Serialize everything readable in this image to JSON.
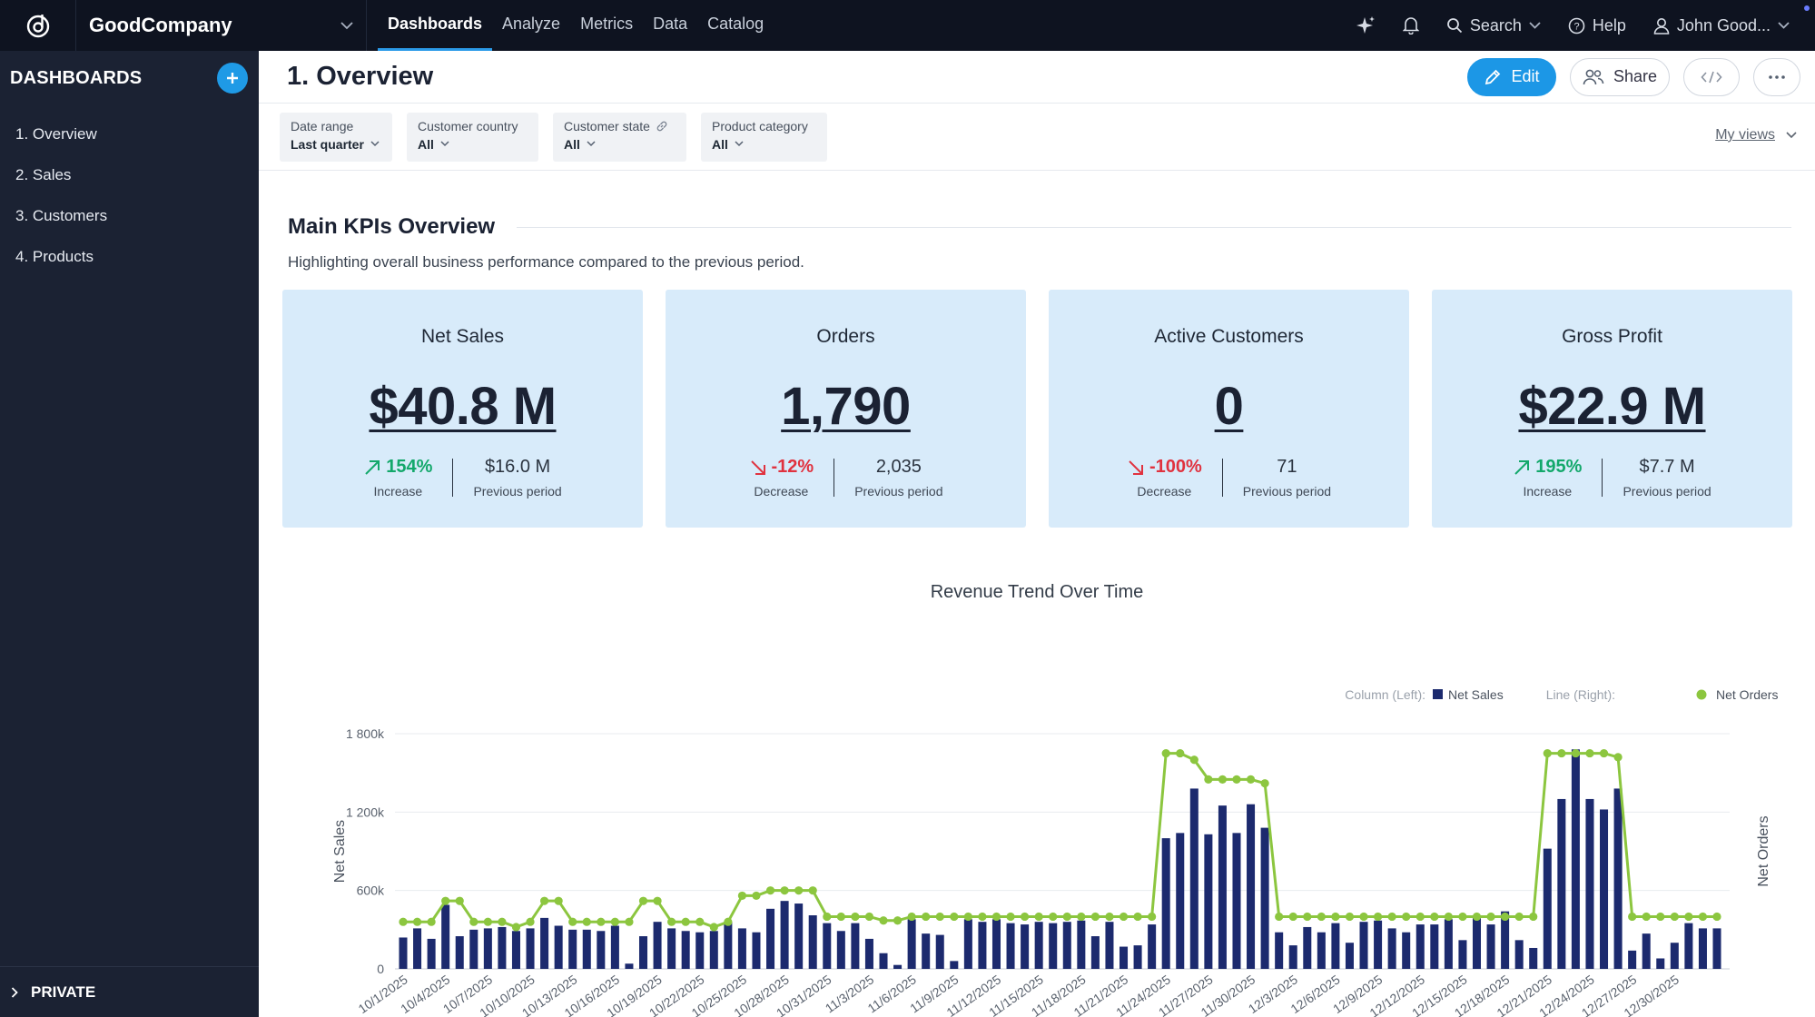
{
  "app": {
    "workspace": "GoodCompany",
    "nav": [
      "Dashboards",
      "Analyze",
      "Metrics",
      "Data",
      "Catalog"
    ],
    "active_nav": "Dashboards",
    "search_label": "Search",
    "help_label": "Help",
    "user_name": "John Good..."
  },
  "sidebar": {
    "title": "DASHBOARDS",
    "items": [
      {
        "label": "1. Overview"
      },
      {
        "label": "2. Sales"
      },
      {
        "label": "3. Customers"
      },
      {
        "label": "4. Products"
      }
    ],
    "footer_label": "PRIVATE"
  },
  "page": {
    "title": "1. Overview",
    "edit_label": "Edit",
    "share_label": "Share"
  },
  "filters": [
    {
      "label": "Date range",
      "value": "Last quarter"
    },
    {
      "label": "Customer country",
      "value": "All"
    },
    {
      "label": "Customer state",
      "value": "All"
    },
    {
      "label": "Product category",
      "value": "All"
    }
  ],
  "my_views_label": "My views",
  "section": {
    "title": "Main KPIs Overview",
    "description": "Highlighting overall business performance compared to the previous period."
  },
  "kpis": [
    {
      "title": "Net Sales",
      "value": "$40.8 M",
      "delta": "154%",
      "direction": "up",
      "delta_label": "Increase",
      "previous": "$16.0 M",
      "previous_label": "Previous period"
    },
    {
      "title": "Orders",
      "value": "1,790",
      "delta": "-12%",
      "direction": "down",
      "delta_label": "Decrease",
      "previous": "2,035",
      "previous_label": "Previous period"
    },
    {
      "title": "Active Customers",
      "value": "0",
      "delta": "-100%",
      "direction": "down",
      "delta_label": "Decrease",
      "previous": "71",
      "previous_label": "Previous period"
    },
    {
      "title": "Gross Profit",
      "value": "$22.9 M",
      "delta": "195%",
      "direction": "up",
      "delta_label": "Increase",
      "previous": "$7.7 M",
      "previous_label": "Previous period"
    }
  ],
  "colors": {
    "bar": "#1c2a6e",
    "line": "#8cc63f",
    "accent": "#1c97e6",
    "up": "#13a86b",
    "down": "#e0323f"
  },
  "chart_data": {
    "type": "bar",
    "title": "Revenue Trend Over Time",
    "ylabel": "Net Sales",
    "y2label": "Net Orders",
    "ylim": [
      0,
      1800000
    ],
    "yticks": [
      0,
      600000,
      1200000,
      1800000
    ],
    "ytick_labels": [
      "0",
      "600k",
      "1 200k",
      "1 800k"
    ],
    "legend_position": "top-right",
    "legend": {
      "left_prefix": "Column (Left):",
      "left_series": "Net Sales",
      "right_prefix": "Line (Right):",
      "right_series": "Net Orders"
    },
    "x_tick_labels": [
      "10/1/2025",
      "10/4/2025",
      "10/7/2025",
      "10/10/2025",
      "10/13/2025",
      "10/16/2025",
      "10/19/2025",
      "10/22/2025",
      "10/25/2025",
      "10/28/2025",
      "10/31/2025",
      "11/3/2025",
      "11/6/2025",
      "11/9/2025",
      "11/12/2025",
      "11/15/2025",
      "11/18/2025",
      "11/21/2025",
      "11/24/2025",
      "11/27/2025",
      "11/30/2025",
      "12/3/2025",
      "12/6/2025",
      "12/9/2025",
      "12/12/2025",
      "12/15/2025",
      "12/18/2025",
      "12/21/2025",
      "12/24/2025",
      "12/27/2025",
      "12/30/2025"
    ],
    "x_start": "10/1/2025",
    "series": [
      {
        "name": "Net Sales",
        "axis": "left",
        "type": "column",
        "values": [
          240000,
          310000,
          230000,
          490000,
          250000,
          300000,
          310000,
          320000,
          290000,
          310000,
          390000,
          330000,
          300000,
          300000,
          290000,
          330000,
          40000,
          250000,
          360000,
          310000,
          290000,
          280000,
          290000,
          360000,
          310000,
          280000,
          460000,
          520000,
          500000,
          410000,
          350000,
          290000,
          350000,
          230000,
          120000,
          30000,
          380000,
          270000,
          260000,
          60000,
          380000,
          360000,
          380000,
          350000,
          340000,
          360000,
          350000,
          360000,
          370000,
          250000,
          360000,
          170000,
          180000,
          340000,
          1000000,
          1040000,
          1380000,
          1030000,
          1250000,
          1040000,
          1260000,
          1080000,
          280000,
          180000,
          320000,
          280000,
          350000,
          200000,
          360000,
          370000,
          310000,
          280000,
          340000,
          340000,
          380000,
          220000,
          390000,
          340000,
          440000,
          220000,
          160000,
          920000,
          1300000,
          1680000,
          1300000,
          1220000,
          1380000,
          140000,
          270000,
          80000,
          200000,
          350000,
          310000,
          310000
        ]
      },
      {
        "name": "Net Orders",
        "axis": "right",
        "type": "line",
        "values_in_left_units": [
          360000,
          360000,
          360000,
          520000,
          520000,
          360000,
          360000,
          360000,
          320000,
          360000,
          520000,
          520000,
          360000,
          360000,
          360000,
          360000,
          360000,
          520000,
          520000,
          360000,
          360000,
          360000,
          320000,
          360000,
          560000,
          560000,
          600000,
          600000,
          600000,
          600000,
          400000,
          400000,
          400000,
          400000,
          370000,
          370000,
          400000,
          400000,
          400000,
          400000,
          400000,
          400000,
          400000,
          400000,
          400000,
          400000,
          400000,
          400000,
          400000,
          400000,
          400000,
          400000,
          400000,
          400000,
          1650000,
          1650000,
          1600000,
          1450000,
          1450000,
          1450000,
          1450000,
          1420000,
          400000,
          400000,
          400000,
          400000,
          400000,
          400000,
          400000,
          400000,
          400000,
          400000,
          400000,
          400000,
          400000,
          400000,
          400000,
          400000,
          400000,
          400000,
          400000,
          1650000,
          1650000,
          1650000,
          1650000,
          1650000,
          1620000,
          400000,
          400000,
          400000,
          400000,
          400000,
          400000,
          400000
        ]
      }
    ]
  }
}
